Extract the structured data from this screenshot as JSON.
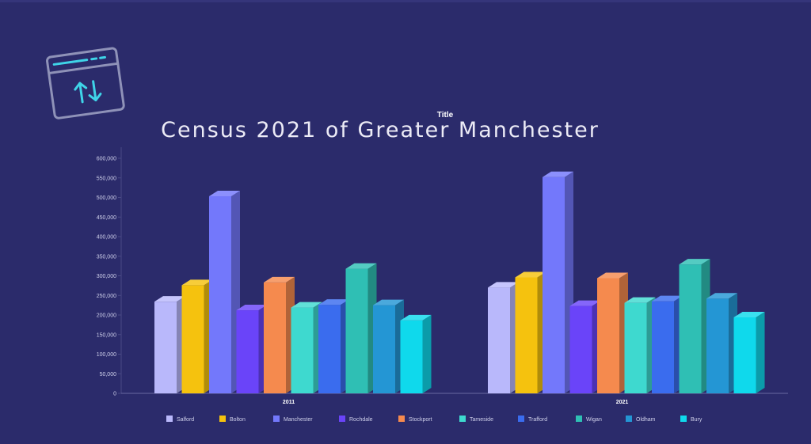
{
  "chart_data": {
    "type": "bar",
    "title": "Title",
    "subtitle": "Census 2021 of Greater Manchester",
    "categories": [
      "2011",
      "2021"
    ],
    "ylim": [
      0,
      600000
    ],
    "yticks": [
      "0",
      "50,000",
      "100,000",
      "150,000",
      "200,000",
      "250,000",
      "300,000",
      "350,000",
      "400,000",
      "450,000",
      "500,000",
      "550,000",
      "600,000"
    ],
    "grid": false,
    "legend_position": "bottom",
    "series": [
      {
        "name": "Salford",
        "color": "#b9b8fb",
        "values": [
          234000,
          270000
        ]
      },
      {
        "name": "Bolton",
        "color": "#f5c20e",
        "values": [
          276000,
          296000
        ]
      },
      {
        "name": "Manchester",
        "color": "#7378fb",
        "values": [
          503000,
          552000
        ]
      },
      {
        "name": "Rochdale",
        "color": "#6a44f9",
        "values": [
          212000,
          223000
        ]
      },
      {
        "name": "Stockport",
        "color": "#f58a4e",
        "values": [
          283000,
          294000
        ]
      },
      {
        "name": "Tameside",
        "color": "#3ed9cf",
        "values": [
          219000,
          231000
        ]
      },
      {
        "name": "Trafford",
        "color": "#3a6cee",
        "values": [
          226000,
          235000
        ]
      },
      {
        "name": "Wigan",
        "color": "#2fbfb4",
        "values": [
          318000,
          329000
        ]
      },
      {
        "name": "Oldham",
        "color": "#2496d4",
        "values": [
          225000,
          242000
        ]
      },
      {
        "name": "Bury",
        "color": "#0fd9ec",
        "values": [
          186000,
          194000
        ]
      }
    ]
  }
}
